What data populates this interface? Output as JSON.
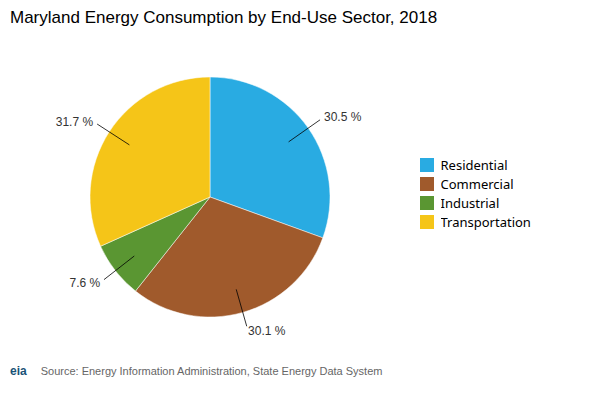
{
  "chart_data": {
    "type": "pie",
    "title": "Maryland Energy Consumption by End-Use Sector, 2018",
    "categories": [
      "Residential",
      "Commercial",
      "Industrial",
      "Transportation"
    ],
    "values": [
      30.5,
      30.1,
      7.6,
      31.7
    ],
    "value_labels": [
      "30.5 %",
      "30.1 %",
      "7.6 %",
      "31.7 %"
    ],
    "data_labels": true,
    "colors": [
      "#29ABE2",
      "#A05A2C",
      "#5A9632",
      "#F5C518"
    ],
    "legend": "right",
    "annotations": [
      "eia",
      "Source: Energy Information Administration, State Energy Data System"
    ]
  }
}
